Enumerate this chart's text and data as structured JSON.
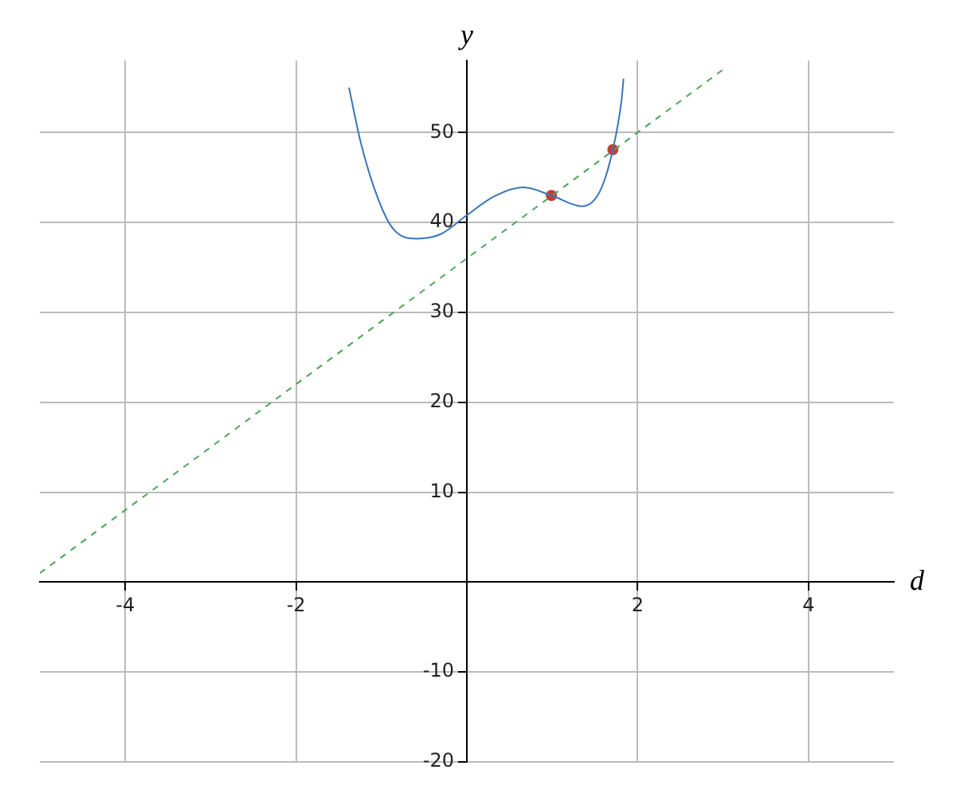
{
  "chart_data": {
    "type": "line",
    "xlabel": "d",
    "ylabel": "y",
    "xlim": [
      -5,
      5
    ],
    "ylim": [
      -20,
      58
    ],
    "xticks": [
      -4,
      -2,
      2,
      4
    ],
    "yticks": [
      -20,
      -10,
      10,
      20,
      30,
      40,
      50
    ],
    "grid": true,
    "series": [
      {
        "type": "line",
        "color": "#3a76b8",
        "marker": "none",
        "line_style": "solid",
        "x": [
          -1.38,
          -1.24,
          -1.05,
          -0.865,
          -0.585,
          -0.305,
          0,
          0.32,
          0.66,
          0.99,
          1.35,
          1.56,
          1.71,
          1.81,
          1.835
        ],
        "values": [
          55,
          48.8,
          42.9,
          39.3,
          38.2,
          38.7,
          40.8,
          42.9,
          43.9,
          43,
          41.8,
          43.5,
          48.1,
          53.5,
          56
        ]
      },
      {
        "type": "line",
        "color": "#4ca55a",
        "marker": "none",
        "line_style": "dashed",
        "x": [
          -5,
          3
        ],
        "values": [
          1,
          57
        ]
      },
      {
        "type": "scatter",
        "color": "#cc3b33",
        "marker": "circle",
        "x": [
          0.99,
          1.71
        ],
        "values": [
          43,
          48.1
        ]
      }
    ]
  }
}
